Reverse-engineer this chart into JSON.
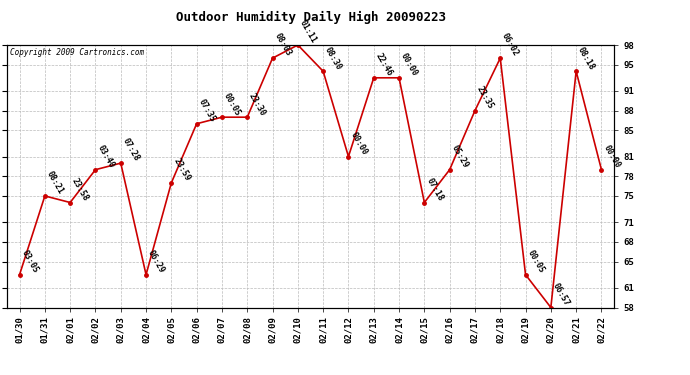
{
  "title": "Outdoor Humidity Daily High 20090223",
  "copyright": "Copyright 2009 Cartronics.com",
  "dates": [
    "01/30",
    "01/31",
    "02/01",
    "02/02",
    "02/03",
    "02/04",
    "02/05",
    "02/06",
    "02/07",
    "02/08",
    "02/09",
    "02/10",
    "02/11",
    "02/12",
    "02/13",
    "02/14",
    "02/15",
    "02/16",
    "02/17",
    "02/18",
    "02/19",
    "02/20",
    "02/21",
    "02/22"
  ],
  "values": [
    63,
    75,
    74,
    79,
    80,
    63,
    77,
    86,
    87,
    87,
    96,
    98,
    94,
    81,
    93,
    93,
    74,
    79,
    88,
    96,
    63,
    58,
    94,
    79
  ],
  "labels": [
    "03:05",
    "08:21",
    "23:58",
    "03:40",
    "07:28",
    "06:29",
    "23:59",
    "07:35",
    "00:05",
    "23:30",
    "08:03",
    "01:11",
    "08:30",
    "00:00",
    "22:46",
    "00:00",
    "07:18",
    "05:29",
    "23:35",
    "06:02",
    "00:05",
    "06:57",
    "08:18",
    "00:00"
  ],
  "line_color": "#cc0000",
  "marker_color": "#cc0000",
  "bg_color": "#ffffff",
  "grid_color": "#bbbbbb",
  "ylim": [
    58,
    98
  ],
  "yticks": [
    58,
    61,
    65,
    68,
    71,
    75,
    78,
    81,
    85,
    88,
    91,
    95,
    98
  ],
  "title_fontsize": 9,
  "label_fontsize": 6,
  "tick_fontsize": 6.5,
  "copyright_fontsize": 5.5
}
